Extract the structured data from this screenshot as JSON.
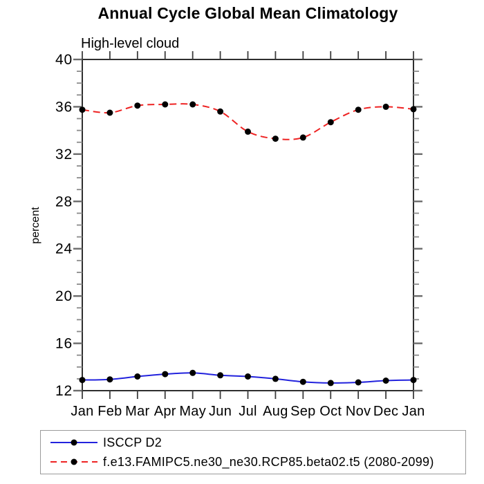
{
  "title": {
    "text": "Annual Cycle Global Mean Climatology"
  },
  "subtitle": {
    "text": "High-level cloud"
  },
  "chart_data": {
    "type": "line",
    "title": "Annual Cycle Global Mean Climatology",
    "subtitle": "High-level cloud",
    "xlabel": "",
    "ylabel": "percent",
    "ylim": [
      12,
      40
    ],
    "ytick_major_step": 4,
    "ytick_minor_step": 1,
    "ytick_labels": [
      "12",
      "16",
      "20",
      "24",
      "28",
      "32",
      "36",
      "40"
    ],
    "grid": false,
    "legend_position": "bottom-left-outside",
    "categories": [
      "Jan",
      "Feb",
      "Mar",
      "Apr",
      "May",
      "Jun",
      "Jul",
      "Aug",
      "Sep",
      "Oct",
      "Nov",
      "Dec",
      "Jan"
    ],
    "series": [
      {
        "name": "ISCCP D2",
        "line_color": "#2222dd",
        "line_style": "solid",
        "marker": "filled-circle",
        "marker_color": "#000000",
        "values": [
          12.9,
          12.95,
          13.2,
          13.4,
          13.5,
          13.3,
          13.2,
          13.0,
          12.75,
          12.65,
          12.7,
          12.85,
          12.9
        ]
      },
      {
        "name": "f.e13.FAMIPC5.ne30_ne30.RCP85.beta02.t5 (2080-2099)",
        "line_color": "#ee2222",
        "line_style": "dashed",
        "marker": "filled-circle",
        "marker_color": "#000000",
        "values": [
          35.75,
          35.5,
          36.1,
          36.2,
          36.2,
          35.6,
          33.9,
          33.3,
          33.4,
          34.7,
          35.75,
          36.0,
          35.8
        ]
      }
    ]
  },
  "style": {
    "frame_color": "#2e2e2e",
    "major_tick_color": "#6b6b6b",
    "minor_tick_color": "#8a8a8a",
    "month_tick_color": "#3c3c3c",
    "legend_border_color": "#9a9a9a",
    "background": "#ffffff"
  }
}
